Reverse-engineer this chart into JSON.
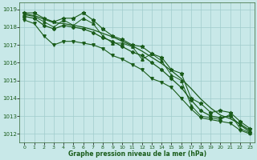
{
  "title": "Graphe pression niveau de la mer (hPa)",
  "bg_color": "#c8e8e8",
  "grid_color": "#a0cccc",
  "line_color": "#1a5c1a",
  "hours": [
    0,
    1,
    2,
    3,
    4,
    5,
    6,
    7,
    8,
    9,
    10,
    11,
    12,
    13,
    14,
    15,
    16,
    17,
    18,
    19,
    20,
    21,
    22,
    23
  ],
  "series_mean": [
    1018.6,
    1018.5,
    1018.1,
    1017.9,
    1018.1,
    1018.0,
    1017.9,
    1017.7,
    1017.4,
    1017.2,
    1016.9,
    1016.6,
    1016.4,
    1016.0,
    1015.6,
    1015.1,
    1014.6,
    1013.9,
    1013.3,
    1013.0,
    1012.9,
    1013.0,
    1012.5,
    1012.1
  ],
  "series_upper": [
    1018.8,
    1018.8,
    1018.5,
    1018.3,
    1018.5,
    1018.5,
    1018.8,
    1018.4,
    1017.9,
    1017.5,
    1017.3,
    1017.0,
    1016.9,
    1016.5,
    1016.3,
    1015.6,
    1015.4,
    1014.0,
    1013.7,
    1013.2,
    1013.3,
    1013.2,
    1012.7,
    1012.3
  ],
  "series_lower": [
    1018.4,
    1018.2,
    1017.5,
    1017.0,
    1017.2,
    1017.2,
    1017.1,
    1017.0,
    1016.8,
    1016.4,
    1016.2,
    1015.9,
    1015.6,
    1015.1,
    1014.9,
    1014.6,
    1014.0,
    1013.4,
    1012.9,
    1012.8,
    1012.7,
    1012.6,
    1012.2,
    1012.0
  ],
  "series_jagged": [
    1018.7,
    1018.6,
    1018.3,
    1018.0,
    1018.4,
    1018.1,
    1018.5,
    1018.2,
    1017.5,
    1017.1,
    1017.1,
    1016.9,
    1016.2,
    1016.5,
    1016.1,
    1015.3,
    1015.0,
    1013.6,
    1013.0,
    1012.9,
    1012.8,
    1013.1,
    1012.3,
    1012.05
  ],
  "series_trend1": [
    1018.75,
    1018.65,
    1018.45,
    1018.25,
    1018.2,
    1018.1,
    1018.0,
    1017.85,
    1017.65,
    1017.45,
    1017.2,
    1016.95,
    1016.65,
    1016.3,
    1015.95,
    1015.55,
    1015.1,
    1014.55,
    1013.95,
    1013.45,
    1013.05,
    1012.85,
    1012.55,
    1012.2
  ],
  "ylim_min": 1011.5,
  "ylim_max": 1019.4,
  "yticks": [
    1012,
    1013,
    1014,
    1015,
    1016,
    1017,
    1018,
    1019
  ]
}
